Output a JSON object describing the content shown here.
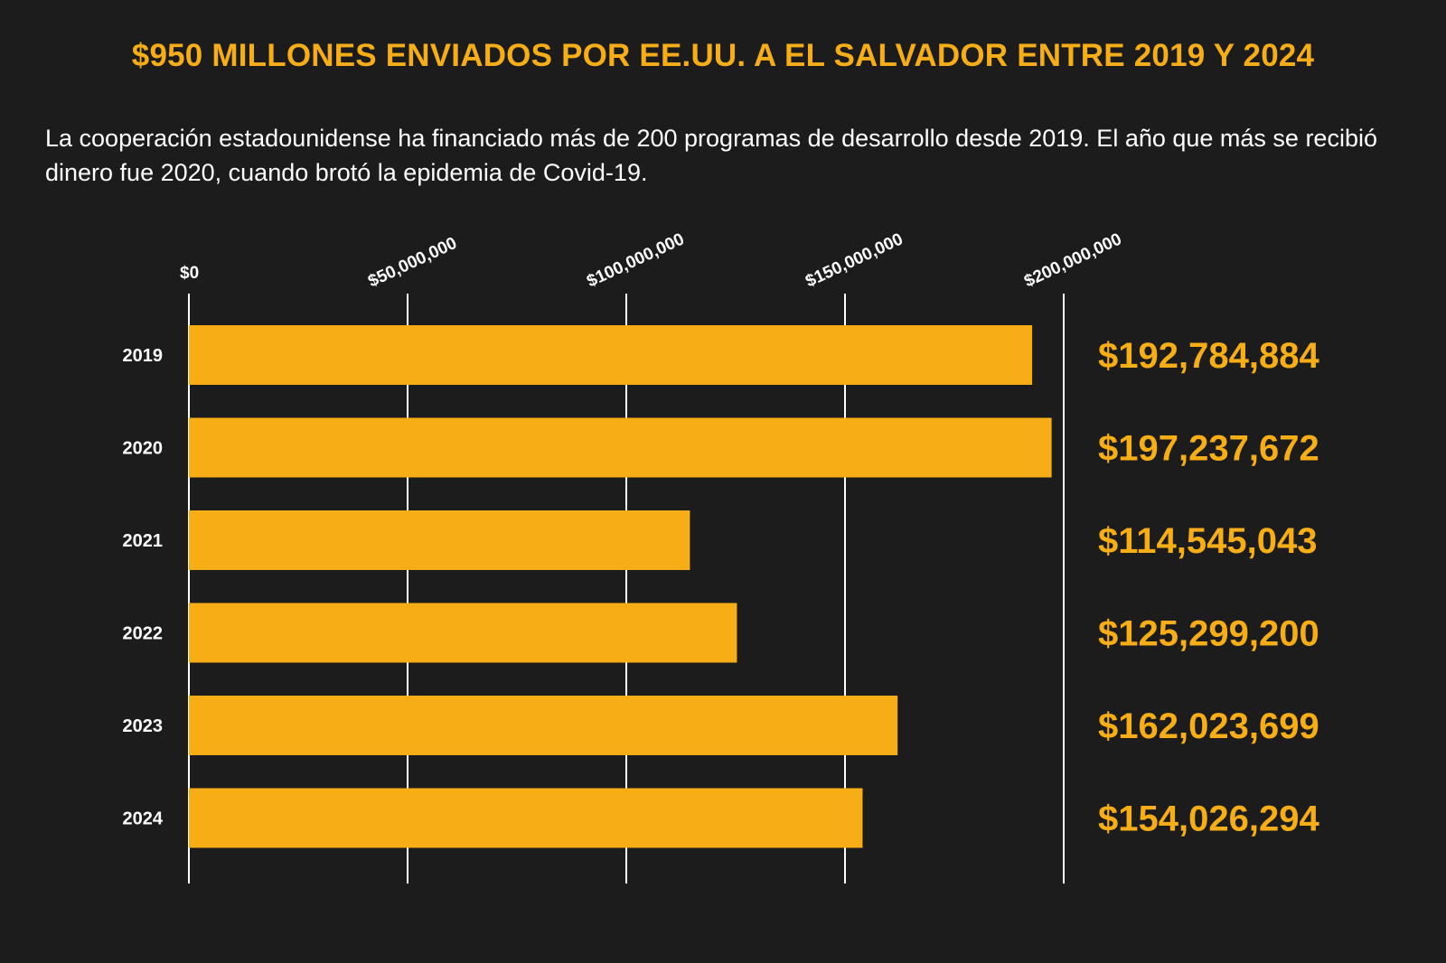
{
  "header": {
    "title": "$950 MILLONES ENVIADOS POR EE.UU. A EL SALVADOR ENTRE 2019 Y 2024",
    "subtitle": "La cooperación estadounidense ha financiado más de 200 programas de desarrollo desde 2019. El año que más se recibió dinero fue 2020, cuando brotó la epidemia de Covid-19."
  },
  "colors": {
    "background": "#1c1c1c",
    "bar": "#f7ae16",
    "accent_text": "#f7ae16",
    "grid": "#ffffff"
  },
  "chart_data": {
    "type": "bar",
    "orientation": "horizontal",
    "categories": [
      "2019",
      "2020",
      "2021",
      "2022",
      "2023",
      "2024"
    ],
    "values": [
      192784884,
      197237672,
      114545043,
      125299200,
      162023699,
      154026294
    ],
    "value_labels": [
      "$192,784,884",
      "$197,237,672",
      "$114,545,043",
      "$125,299,200",
      "$162,023,699",
      "$154,026,294"
    ],
    "xticks": [
      0,
      50000000,
      100000000,
      150000000,
      200000000
    ],
    "xtick_labels": [
      "$0",
      "$50,000,000",
      "$100,000,000",
      "$150,000,000",
      "$200,000,000"
    ],
    "xlim": [
      0,
      200000000
    ],
    "grid": true,
    "axis_position": "top",
    "legend": "none"
  }
}
